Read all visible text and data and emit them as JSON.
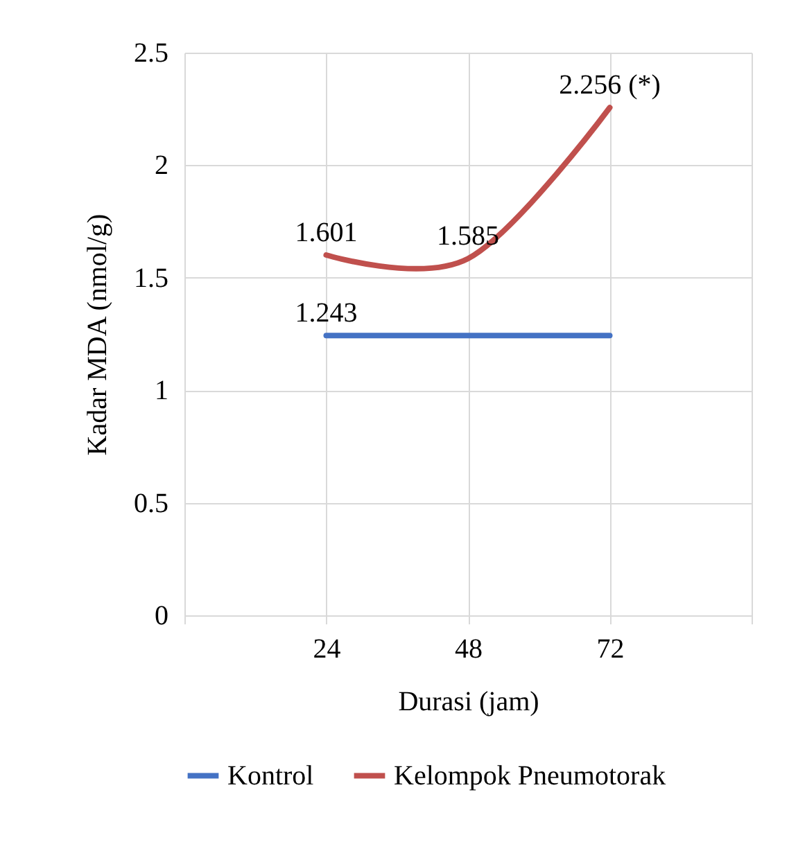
{
  "chart_data": {
    "type": "line",
    "xlabel": "Durasi (jam)",
    "ylabel": "Kadar MDA (nmol/g)",
    "x": [
      24,
      48,
      72
    ],
    "xlim": [
      0,
      96
    ],
    "xticks": [
      {
        "value": 0,
        "label": null
      },
      24,
      48,
      72,
      {
        "value": 96,
        "label": null
      }
    ],
    "ylim": [
      0,
      2.5
    ],
    "yticks": [
      0,
      0.5,
      1,
      1.5,
      2,
      2.5
    ],
    "grid": true,
    "legend": "bottom",
    "marker": "none",
    "line_style": "solid",
    "series": [
      {
        "name": "Kontrol",
        "color": "#4472c4",
        "values": [
          1.243,
          1.243,
          1.243
        ],
        "value_labels": [
          "1.243",
          null,
          null
        ]
      },
      {
        "name": "Kelompok Pneumotorak",
        "color": "#c0504d",
        "values": [
          1.601,
          1.585,
          2.256
        ],
        "value_labels": [
          "1.601",
          "1.585",
          "2.256 (*)"
        ]
      }
    ]
  }
}
